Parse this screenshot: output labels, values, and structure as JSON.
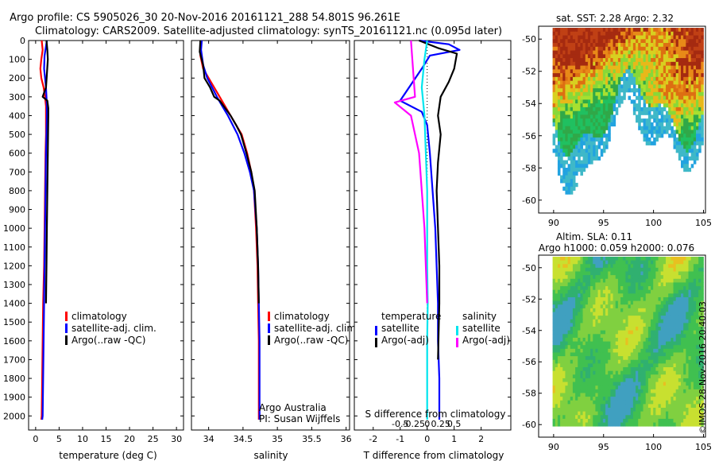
{
  "header": {
    "line1": "Argo profile: CS 5905026_30 20-Nov-2016 20161121_288 54.801S 96.261E",
    "line2": "Climatology: CARS2009. Satellite-adjusted climatology: synTS_20161121.nc (0.095d later)"
  },
  "depth_ticks": [
    "0",
    "100",
    "200",
    "300",
    "400",
    "500",
    "600",
    "700",
    "800",
    "900",
    "1000",
    "1100",
    "1200",
    "1300",
    "1400",
    "1500",
    "1600",
    "1700",
    "1800",
    "1900",
    "2000"
  ],
  "colors": {
    "climatology": "#ff0000",
    "satellite": "#0000ff",
    "argo": "#000000",
    "sal_satellite": "#00e5ee",
    "sal_argo": "#ff00ff"
  },
  "chart_data": [
    {
      "type": "line",
      "xlabel": "temperature (deg C)",
      "ylabel": "",
      "xlim": [
        -1.5,
        31.5
      ],
      "ylim": [
        2075,
        0
      ],
      "xticks": [
        "0",
        "5",
        "10",
        "15",
        "20",
        "25",
        "30"
      ],
      "xtick_values": [
        0,
        5,
        10,
        15,
        20,
        25,
        30
      ],
      "legend": [
        "climatology",
        "satellite-adj. clim.",
        "Argo(..raw -QC)"
      ],
      "legend_placement": "bottom-center",
      "series": [
        {
          "name": "climatology",
          "color": "#ff0000",
          "x": [
            1.3,
            1.5,
            1.2,
            1.0,
            1.2,
            1.7,
            2.0,
            2.2,
            2.2,
            2.2,
            2.1,
            2.0,
            1.9,
            1.8,
            1.6,
            1.5,
            1.4,
            1.3,
            1.2
          ],
          "y": [
            0,
            50,
            100,
            150,
            200,
            250,
            300,
            350,
            400,
            500,
            600,
            800,
            1000,
            1200,
            1400,
            1600,
            1800,
            2000,
            2020
          ]
        },
        {
          "name": "satellite-adj. clim.",
          "color": "#0000ff",
          "x": [
            2.4,
            2.2,
            1.9,
            1.8,
            2.0,
            2.2,
            2.3,
            2.4,
            2.4,
            2.3,
            2.2,
            2.1,
            2.0,
            1.9,
            1.8,
            1.7,
            1.6,
            1.5,
            1.4
          ],
          "y": [
            0,
            30,
            80,
            150,
            200,
            250,
            300,
            350,
            400,
            500,
            600,
            800,
            1000,
            1200,
            1400,
            1600,
            1800,
            2000,
            2020
          ]
        },
        {
          "name": "Argo(..raw -QC)",
          "color": "#000000",
          "x": [
            2.3,
            2.5,
            2.6,
            2.4,
            2.2,
            1.5,
            2.5,
            2.7,
            2.7,
            2.6,
            2.5,
            2.4,
            2.3,
            2.2
          ],
          "y": [
            0,
            50,
            100,
            180,
            250,
            300,
            320,
            360,
            400,
            600,
            800,
            1000,
            1200,
            1400
          ]
        }
      ]
    },
    {
      "type": "line",
      "xlabel": "salinity",
      "ylabel": "",
      "xlim": [
        33.75,
        36.05
      ],
      "ylim": [
        2075,
        0
      ],
      "xticks": [
        "34",
        "34.5",
        "35",
        "35.5",
        "36"
      ],
      "xtick_values": [
        34,
        34.5,
        35,
        35.5,
        36
      ],
      "legend": [
        "climatology",
        "satellite-adj. clim.",
        "Argo(..raw -QC)"
      ],
      "legend_placement": "bottom-right",
      "annotations": [
        "Argo Australia",
        "PI: Susan Wijffels"
      ],
      "series": [
        {
          "name": "climatology",
          "color": "#ff0000",
          "x": [
            33.88,
            33.88,
            33.92,
            34.0,
            34.08,
            34.16,
            34.24,
            34.32,
            34.4,
            34.48,
            34.56,
            34.62,
            34.66,
            34.69,
            34.71,
            34.72,
            34.73,
            34.73,
            34.73
          ],
          "y": [
            0,
            80,
            150,
            200,
            250,
            300,
            350,
            400,
            450,
            500,
            600,
            700,
            800,
            1000,
            1200,
            1400,
            1600,
            1800,
            2020
          ]
        },
        {
          "name": "satellite-adj. clim.",
          "color": "#0000ff",
          "x": [
            33.9,
            33.89,
            33.92,
            33.98,
            34.05,
            34.12,
            34.2,
            34.28,
            34.35,
            34.42,
            34.52,
            34.6,
            34.66,
            34.7,
            34.72,
            34.73,
            34.74,
            34.74,
            34.74
          ],
          "y": [
            0,
            50,
            130,
            200,
            250,
            300,
            350,
            400,
            450,
            500,
            600,
            700,
            800,
            1000,
            1200,
            1400,
            1600,
            1800,
            2020
          ]
        },
        {
          "name": "Argo(..raw -QC)",
          "color": "#000000",
          "x": [
            33.88,
            33.87,
            33.92,
            33.94,
            34.02,
            34.08,
            34.16,
            34.24,
            34.32,
            34.4,
            34.47,
            34.55,
            34.62,
            34.67,
            34.7,
            34.72,
            34.73
          ],
          "y": [
            0,
            60,
            130,
            200,
            250,
            300,
            320,
            360,
            400,
            450,
            500,
            600,
            700,
            800,
            1000,
            1200,
            1400
          ]
        }
      ]
    },
    {
      "type": "line",
      "xlabel": "T difference from climatology",
      "ylabel": "",
      "title_bottom": "S difference from climatology",
      "xlim": [
        -2.7,
        3.1
      ],
      "ylim": [
        2075,
        0
      ],
      "xticks": [
        "-2",
        "-1",
        "0",
        "1",
        "2"
      ],
      "xtick_values": [
        -2,
        -1,
        0,
        1,
        2
      ],
      "s_xticks": [
        "-0.5",
        "-0.25",
        "0",
        "0.25",
        "0.5"
      ],
      "legend_temperature": [
        "temperature",
        "satellite",
        "Argo(-adj)"
      ],
      "legend_salinity": [
        "salinity",
        "satellite",
        "Argo(-adj)"
      ],
      "legend_placement": "bottom",
      "series": [
        {
          "name": "satellite",
          "group": "temperature",
          "color": "#0000ff",
          "x": [
            -0.3,
            0.8,
            1.2,
            0.1,
            -0.2,
            -1.0,
            -0.2,
            0.0,
            0.1,
            0.2,
            0.3,
            0.35,
            0.4,
            0.4,
            0.45,
            0.45
          ],
          "y": [
            0,
            20,
            50,
            80,
            150,
            320,
            380,
            450,
            600,
            800,
            1000,
            1200,
            1400,
            1600,
            1800,
            2020
          ]
        },
        {
          "name": "Argo(-adj)",
          "group": "temperature",
          "color": "#000000",
          "x": [
            -0.3,
            0.4,
            1.1,
            1.0,
            0.8,
            0.5,
            0.4,
            0.5,
            0.4,
            0.35,
            0.4,
            0.45,
            0.45,
            0.4
          ],
          "y": [
            0,
            40,
            70,
            150,
            220,
            300,
            400,
            500,
            650,
            800,
            1000,
            1200,
            1400,
            1700
          ]
        },
        {
          "name": "satellite",
          "group": "salinity",
          "color": "#00e5ee",
          "x": [
            0.0,
            -0.1,
            -0.2,
            -0.1,
            -0.05,
            0.0,
            0.0,
            0.0,
            0.02,
            0.0,
            0.0
          ],
          "y": [
            0,
            100,
            250,
            400,
            600,
            800,
            1000,
            1200,
            1400,
            1600,
            2020
          ]
        },
        {
          "name": "Argo(-adj)",
          "group": "salinity",
          "color": "#ff00ff",
          "x": [
            -0.6,
            -0.5,
            -0.45,
            -1.2,
            -0.6,
            -0.3,
            -0.2,
            -0.1,
            -0.05,
            0.0
          ],
          "y": [
            0,
            200,
            300,
            330,
            400,
            600,
            800,
            1000,
            1200,
            1400
          ]
        }
      ]
    },
    {
      "type": "heatmap",
      "title": "sat. SST: 2.28 Argo: 2.32",
      "xticks": [
        "90",
        "95",
        "100",
        "105"
      ],
      "xtick_values": [
        90,
        95,
        100,
        105
      ],
      "yticks": [
        "-50",
        "-52",
        "-54",
        "-56",
        "-58",
        "-60"
      ],
      "ytick_values": [
        -50,
        -52,
        -54,
        -56,
        -58,
        -60
      ],
      "xlim": [
        88.5,
        105.2
      ],
      "ylim": [
        -60.8,
        -49.2
      ]
    },
    {
      "type": "heatmap",
      "title": "Altim. SLA: 0.11",
      "subtitle": "Argo h1000: 0.059 h2000: 0.076",
      "xticks": [
        "90",
        "95",
        "100",
        "105"
      ],
      "xtick_values": [
        90,
        95,
        100,
        105
      ],
      "yticks": [
        "-50",
        "-52",
        "-54",
        "-56",
        "-58",
        "-60"
      ],
      "ytick_values": [
        -50,
        -52,
        -54,
        -56,
        -58,
        -60
      ],
      "xlim": [
        88.5,
        105.2
      ],
      "ylim": [
        -60.8,
        -49.2
      ]
    }
  ],
  "watermark": "©IMOS 28-Nov-2016 20:40:03"
}
